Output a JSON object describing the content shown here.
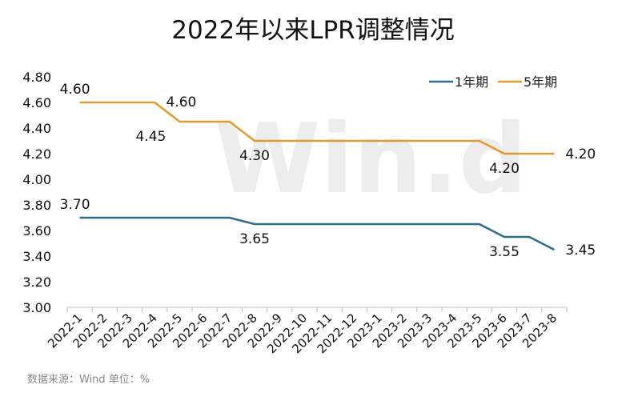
{
  "chart_data": {
    "type": "line",
    "title": "2022年以来LPR调整情况",
    "categories": [
      "2022-1",
      "2022-2",
      "2022-3",
      "2022-4",
      "2022-5",
      "2022-6",
      "2022-7",
      "2022-8",
      "2022-9",
      "2022-10",
      "2022-11",
      "2022-12",
      "2023-1",
      "2023-2",
      "2023-3",
      "2023-4",
      "2023-5",
      "2023-6",
      "2023-7",
      "2023-8"
    ],
    "series": [
      {
        "name": "1年期",
        "color": "#2e6f8e",
        "values": [
          3.7,
          3.7,
          3.7,
          3.7,
          3.7,
          3.7,
          3.7,
          3.65,
          3.65,
          3.65,
          3.65,
          3.65,
          3.65,
          3.65,
          3.65,
          3.65,
          3.65,
          3.55,
          3.55,
          3.45
        ]
      },
      {
        "name": "5年期",
        "color": "#e59a2f",
        "values": [
          4.6,
          4.6,
          4.6,
          4.6,
          4.45,
          4.45,
          4.45,
          4.3,
          4.3,
          4.3,
          4.3,
          4.3,
          4.3,
          4.3,
          4.3,
          4.3,
          4.3,
          4.2,
          4.2,
          4.2
        ]
      }
    ],
    "data_labels": [
      {
        "series": 1,
        "index": 0,
        "text": "4.60",
        "position": "above"
      },
      {
        "series": 1,
        "index": 4,
        "text": "4.60",
        "position": "above"
      },
      {
        "series": 1,
        "index": 4,
        "text": "4.45",
        "position": "below"
      },
      {
        "series": 1,
        "index": 7,
        "text": "4.30",
        "position": "below"
      },
      {
        "series": 1,
        "index": 17,
        "text": "4.20",
        "position": "below"
      },
      {
        "series": 1,
        "index": 19,
        "text": "4.20",
        "position": "right"
      },
      {
        "series": 0,
        "index": 0,
        "text": "3.70",
        "position": "above"
      },
      {
        "series": 0,
        "index": 7,
        "text": "3.65",
        "position": "below"
      },
      {
        "series": 0,
        "index": 17,
        "text": "3.55",
        "position": "below"
      },
      {
        "series": 0,
        "index": 19,
        "text": "3.45",
        "position": "right"
      }
    ],
    "y_ticks": [
      "3.00",
      "3.20",
      "3.40",
      "3.60",
      "3.80",
      "4.00",
      "4.20",
      "4.40",
      "4.60",
      "4.80"
    ],
    "ylim": [
      3.0,
      4.8
    ],
    "grid": false,
    "legend_position": "top-right"
  },
  "watermark": "Win.d",
  "source_note": "数据来源：Wind  单位：%"
}
